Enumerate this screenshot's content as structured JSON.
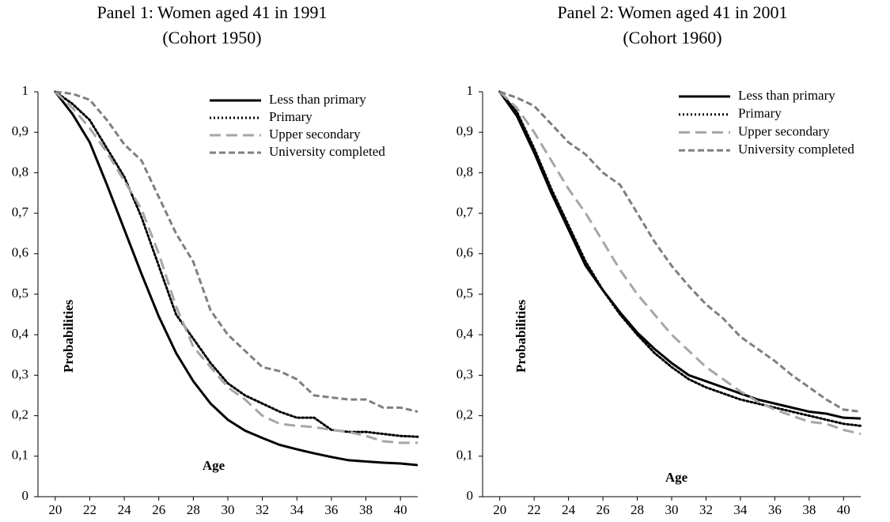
{
  "chart_data": [
    {
      "type": "line",
      "title": "Panel 1: Women aged 41 in 1991",
      "subtitle": "(Cohort 1950)",
      "x_label": "Age",
      "y_label": "Probabilities",
      "x": [
        20,
        21,
        22,
        23,
        24,
        25,
        26,
        27,
        28,
        29,
        30,
        31,
        32,
        33,
        34,
        35,
        36,
        37,
        38,
        39,
        40,
        41
      ],
      "xlim": [
        19,
        41
      ],
      "xticks": [
        20,
        22,
        24,
        26,
        28,
        30,
        32,
        34,
        36,
        38,
        40
      ],
      "ylim": [
        0,
        1
      ],
      "yticks": [
        0,
        {
          "value": 0.1,
          "label": "0,1"
        },
        {
          "value": 0.2,
          "label": "0,2"
        },
        {
          "value": 0.3,
          "label": "0,3"
        },
        {
          "value": 0.4,
          "label": "0,4"
        },
        {
          "value": 0.5,
          "label": "0,5"
        },
        {
          "value": 0.6,
          "label": "0,6"
        },
        {
          "value": 0.7,
          "label": "0,7"
        },
        {
          "value": 0.8,
          "label": "0,8"
        },
        {
          "value": 0.9,
          "label": "0,9"
        },
        1
      ],
      "legend": "top-right",
      "series": [
        {
          "name": "Less than primary",
          "color": "#000000",
          "dash": "solid",
          "values": [
            1,
            0.945,
            0.875,
            0.77,
            0.66,
            0.55,
            0.445,
            0.355,
            0.285,
            0.23,
            0.19,
            0.163,
            0.145,
            0.128,
            0.117,
            0.107,
            0.098,
            0.09,
            0.087,
            0.084,
            0.082,
            0.078
          ]
        },
        {
          "name": "Primary",
          "color": "#000000",
          "dash": "dot",
          "values": [
            1,
            0.97,
            0.93,
            0.86,
            0.79,
            0.69,
            0.57,
            0.45,
            0.39,
            0.33,
            0.28,
            0.25,
            0.23,
            0.21,
            0.195,
            0.195,
            0.165,
            0.16,
            0.16,
            0.155,
            0.15,
            0.148
          ]
        },
        {
          "name": "Upper secondary",
          "color": "#a6a6a6",
          "dash": "long-dash",
          "values": [
            1,
            0.96,
            0.91,
            0.85,
            0.78,
            0.71,
            0.6,
            0.47,
            0.37,
            0.32,
            0.27,
            0.24,
            0.2,
            0.18,
            0.175,
            0.172,
            0.165,
            0.16,
            0.15,
            0.137,
            0.133,
            0.133
          ]
        },
        {
          "name": "University completed",
          "color": "#7f7f7f",
          "dash": "dash",
          "values": [
            1,
            0.995,
            0.98,
            0.93,
            0.87,
            0.83,
            0.74,
            0.65,
            0.58,
            0.46,
            0.4,
            0.36,
            0.32,
            0.31,
            0.29,
            0.25,
            0.245,
            0.24,
            0.24,
            0.22,
            0.22,
            0.21
          ]
        }
      ]
    },
    {
      "type": "line",
      "title": "Panel 2: Women aged 41 in 2001",
      "subtitle": "(Cohort 1960)",
      "x_label": "Age",
      "y_label": "Probabilities",
      "x": [
        20,
        21,
        22,
        23,
        24,
        25,
        26,
        27,
        28,
        29,
        30,
        31,
        32,
        33,
        34,
        35,
        36,
        37,
        38,
        39,
        40,
        41
      ],
      "xlim": [
        19,
        41
      ],
      "xticks": [
        20,
        22,
        24,
        26,
        28,
        30,
        32,
        34,
        36,
        38,
        40
      ],
      "ylim": [
        0,
        1
      ],
      "yticks": [
        0,
        {
          "value": 0.1,
          "label": "0,1"
        },
        {
          "value": 0.2,
          "label": "0,2"
        },
        {
          "value": 0.3,
          "label": "0,3"
        },
        {
          "value": 0.4,
          "label": "0,4"
        },
        {
          "value": 0.5,
          "label": "0,5"
        },
        {
          "value": 0.6,
          "label": "0,6"
        },
        {
          "value": 0.7,
          "label": "0,7"
        },
        {
          "value": 0.8,
          "label": "0,8"
        },
        {
          "value": 0.9,
          "label": "0,9"
        },
        1
      ],
      "legend": "top-right",
      "series": [
        {
          "name": "Less than primary",
          "color": "#000000",
          "dash": "solid",
          "values": [
            1,
            0.94,
            0.85,
            0.75,
            0.66,
            0.57,
            0.51,
            0.455,
            0.405,
            0.365,
            0.33,
            0.3,
            0.285,
            0.27,
            0.255,
            0.24,
            0.23,
            0.22,
            0.21,
            0.205,
            0.195,
            0.193
          ]
        },
        {
          "name": "Primary",
          "color": "#000000",
          "dash": "dot",
          "values": [
            1,
            0.95,
            0.86,
            0.76,
            0.67,
            0.58,
            0.51,
            0.45,
            0.4,
            0.355,
            0.32,
            0.29,
            0.27,
            0.255,
            0.24,
            0.23,
            0.22,
            0.21,
            0.2,
            0.19,
            0.18,
            0.175
          ]
        },
        {
          "name": "Upper secondary",
          "color": "#a6a6a6",
          "dash": "long-dash",
          "values": [
            1,
            0.96,
            0.9,
            0.83,
            0.76,
            0.7,
            0.63,
            0.56,
            0.5,
            0.45,
            0.4,
            0.36,
            0.32,
            0.29,
            0.26,
            0.235,
            0.215,
            0.2,
            0.185,
            0.18,
            0.165,
            0.155
          ]
        },
        {
          "name": "University completed",
          "color": "#7f7f7f",
          "dash": "dash",
          "values": [
            1,
            0.985,
            0.965,
            0.92,
            0.875,
            0.845,
            0.8,
            0.77,
            0.7,
            0.63,
            0.57,
            0.52,
            0.475,
            0.44,
            0.395,
            0.365,
            0.335,
            0.3,
            0.27,
            0.24,
            0.215,
            0.21
          ]
        }
      ]
    }
  ]
}
